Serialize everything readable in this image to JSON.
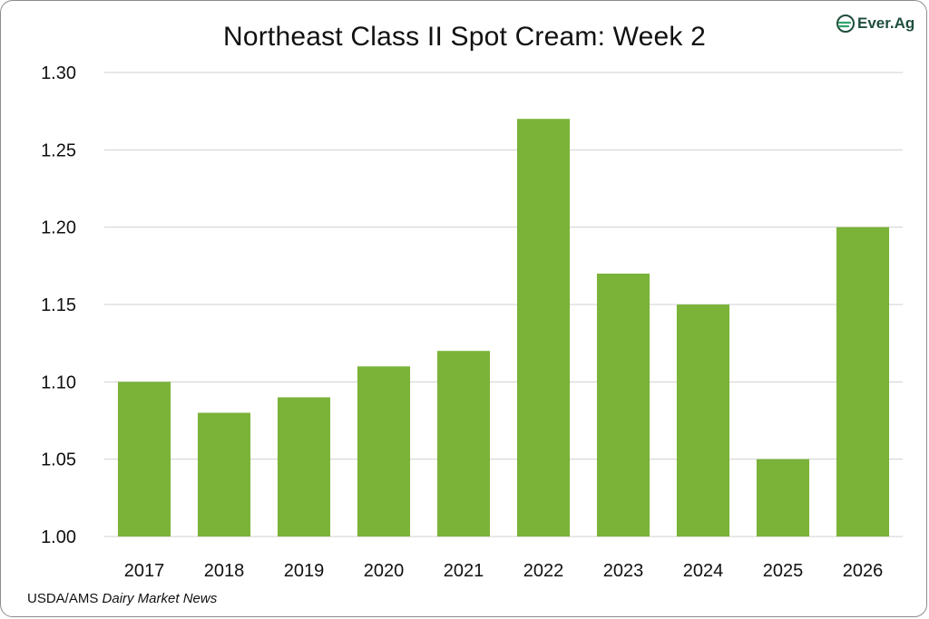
{
  "chart_data": {
    "type": "bar",
    "title": "Northeast Class II Spot Cream: Week 2",
    "categories": [
      "2017",
      "2018",
      "2019",
      "2020",
      "2021",
      "2022",
      "2023",
      "2024",
      "2025",
      "2026"
    ],
    "values": [
      1.1,
      1.08,
      1.09,
      1.11,
      1.12,
      1.27,
      1.17,
      1.15,
      1.05,
      1.2
    ],
    "ylim": [
      1.0,
      1.3
    ],
    "yticks": [
      "1.00",
      "1.05",
      "1.10",
      "1.15",
      "1.20",
      "1.25",
      "1.30"
    ],
    "xlabel": "",
    "ylabel": "",
    "grid": true,
    "bar_color": "#7ab338",
    "grid_color": "#d0d0d0"
  },
  "logo": {
    "text": "Ever.Ag",
    "icon": "ever-ag-logo-icon",
    "color": "#1f4e3d"
  },
  "source": {
    "prefix": "USDA/AMS ",
    "italic": "Dairy Market News"
  }
}
